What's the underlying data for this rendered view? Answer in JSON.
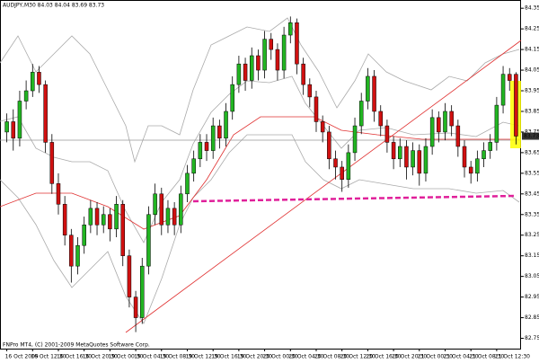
{
  "chart_data": {
    "type": "candlestick",
    "title": "AUDJPY,M30 84.03 84.04 83.69 83.73",
    "footer": "FNPro MT4, (C) 2001-2009 MetaQuotes Software Corp.",
    "categories": [
      "16 Oct 2009",
      null,
      null,
      null,
      "16 Oct 12:30",
      null,
      null,
      null,
      "16 Oct 16:30",
      null,
      null,
      null,
      "16 Oct 20:30",
      null,
      null,
      null,
      "19 Oct 00:30",
      null,
      null,
      null,
      "19 Oct 04:30",
      null,
      null,
      null,
      "19 Oct 08:30",
      null,
      null,
      null,
      "19 Oct 12:30",
      null,
      null,
      null,
      "19 Oct 16:30",
      null,
      null,
      null,
      "19 Oct 20:30",
      null,
      null,
      null,
      "20 Oct 00:30",
      null,
      null,
      null,
      "20 Oct 04:30",
      null,
      null,
      null,
      "20 Oct 08:30",
      null,
      null,
      null,
      "20 Oct 12:30",
      null,
      null,
      null,
      "20 Oct 16:30",
      null,
      null,
      null,
      "20 Oct 20:30",
      null,
      null,
      null,
      "21 Oct 00:30",
      null,
      null,
      null,
      "21 Oct 04:30",
      null,
      null,
      null,
      "21 Oct 08:30",
      null,
      null,
      null,
      "21 Oct 12:30",
      null,
      null,
      null
    ],
    "open": [
      83.75,
      83.8,
      83.72,
      83.9,
      83.95,
      84.04,
      83.98,
      83.7,
      83.5,
      83.4,
      83.25,
      83.1,
      83.2,
      83.3,
      83.38,
      83.3,
      83.35,
      83.28,
      83.4,
      83.15,
      82.95,
      82.85,
      83.1,
      83.35,
      83.45,
      83.3,
      83.38,
      83.3,
      83.45,
      83.55,
      83.62,
      83.7,
      83.66,
      83.78,
      83.72,
      83.85,
      83.98,
      84.08,
      84.0,
      84.12,
      84.05,
      84.2,
      84.15,
      84.05,
      84.22,
      84.28,
      84.08,
      83.98,
      83.92,
      83.8,
      83.75,
      83.62,
      83.58,
      83.52,
      83.65,
      83.78,
      83.9,
      84.02,
      83.85,
      83.78,
      83.7,
      83.62,
      83.68,
      83.58,
      83.66,
      83.55,
      83.68,
      83.82,
      83.75,
      83.85,
      83.78,
      83.68,
      83.58,
      83.55,
      83.62,
      83.66,
      83.7,
      83.88,
      84.03,
      84.03
    ],
    "high": [
      83.84,
      83.86,
      83.95,
      84.0,
      84.08,
      84.07,
      84.0,
      83.74,
      83.55,
      83.44,
      83.28,
      83.24,
      83.34,
      83.42,
      83.41,
      83.39,
      83.38,
      83.44,
      83.42,
      83.18,
      82.98,
      83.14,
      83.39,
      83.5,
      83.48,
      83.42,
      83.41,
      83.49,
      83.59,
      83.66,
      83.74,
      83.74,
      83.82,
      83.81,
      83.89,
      84.02,
      84.12,
      84.11,
      84.16,
      84.15,
      84.24,
      84.23,
      84.18,
      84.26,
      84.31,
      84.3,
      84.11,
      84.01,
      83.95,
      83.83,
      83.78,
      83.66,
      83.61,
      83.69,
      83.82,
      83.94,
      84.06,
      84.05,
      83.88,
      83.81,
      83.73,
      83.72,
      83.71,
      83.7,
      83.69,
      83.72,
      83.86,
      83.85,
      83.89,
      83.88,
      83.81,
      83.71,
      83.61,
      83.66,
      83.7,
      83.74,
      83.92,
      84.07,
      84.06,
      84.04
    ],
    "low": [
      83.7,
      83.66,
      83.68,
      83.86,
      83.92,
      83.94,
      83.65,
      83.45,
      83.35,
      83.2,
      83.02,
      83.06,
      83.16,
      83.26,
      83.25,
      83.26,
      83.22,
      83.24,
      83.1,
      82.9,
      82.78,
      82.82,
      83.06,
      83.3,
      83.25,
      83.26,
      83.25,
      83.26,
      83.41,
      83.51,
      83.58,
      83.61,
      83.62,
      83.67,
      83.68,
      83.81,
      83.94,
      83.95,
      83.96,
      84.0,
      84.01,
      84.1,
      84.0,
      84.01,
      84.18,
      84.03,
      83.93,
      83.87,
      83.75,
      83.7,
      83.57,
      83.52,
      83.46,
      83.48,
      83.61,
      83.74,
      83.86,
      83.8,
      83.73,
      83.65,
      83.57,
      83.58,
      83.52,
      83.54,
      83.49,
      83.51,
      83.64,
      83.7,
      83.71,
      83.73,
      83.63,
      83.53,
      83.5,
      83.51,
      83.58,
      83.62,
      83.66,
      83.84,
      83.95,
      83.69
    ],
    "close": [
      83.8,
      83.72,
      83.9,
      83.95,
      84.04,
      83.98,
      83.7,
      83.5,
      83.4,
      83.25,
      83.1,
      83.2,
      83.3,
      83.38,
      83.3,
      83.35,
      83.28,
      83.4,
      83.15,
      82.95,
      82.85,
      83.1,
      83.35,
      83.45,
      83.3,
      83.38,
      83.3,
      83.45,
      83.55,
      83.62,
      83.7,
      83.66,
      83.78,
      83.72,
      83.85,
      83.98,
      84.08,
      84.0,
      84.12,
      84.05,
      84.2,
      84.15,
      84.05,
      84.22,
      84.28,
      84.08,
      83.98,
      83.92,
      83.8,
      83.75,
      83.62,
      83.58,
      83.52,
      83.65,
      83.78,
      83.9,
      84.02,
      83.85,
      83.78,
      83.7,
      83.62,
      83.68,
      83.58,
      83.66,
      83.55,
      83.68,
      83.82,
      83.75,
      83.85,
      83.78,
      83.68,
      83.58,
      83.55,
      83.62,
      83.66,
      83.7,
      83.88,
      84.03,
      84.0,
      83.73
    ],
    "up_color": "#22b522",
    "down_color": "#d01010",
    "ylim": [
      82.7,
      84.39
    ],
    "yticks": [
      84.35,
      84.25,
      84.15,
      84.05,
      83.95,
      83.85,
      83.75,
      83.65,
      83.55,
      83.45,
      83.35,
      83.25,
      83.15,
      83.05,
      82.95,
      82.85,
      82.75
    ]
  }
}
